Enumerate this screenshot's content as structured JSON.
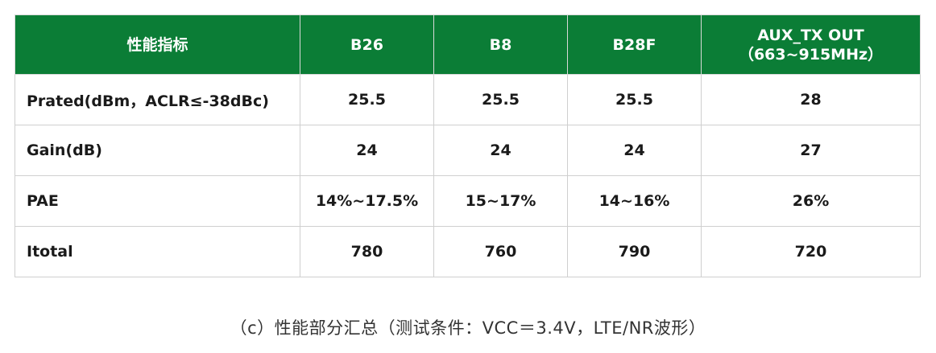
{
  "table": {
    "headers": [
      {
        "lines": [
          "性能指标"
        ]
      },
      {
        "lines": [
          "B26"
        ]
      },
      {
        "lines": [
          "B8"
        ]
      },
      {
        "lines": [
          "B28F"
        ]
      },
      {
        "lines": [
          "AUX_TX OUT",
          "（663~915MHz）"
        ]
      }
    ],
    "rows": [
      {
        "label": "Prated(dBm，ACLR≤-38dBc)",
        "values": [
          "25.5",
          "25.5",
          "25.5",
          "28"
        ]
      },
      {
        "label": "Gain(dB)",
        "values": [
          "24",
          "24",
          "24",
          "27"
        ]
      },
      {
        "label": "PAE",
        "values": [
          "14%~17.5%",
          "15~17%",
          "14~16%",
          "26%"
        ]
      },
      {
        "label": "Itotal",
        "values": [
          "780",
          "760",
          "790",
          "720"
        ]
      }
    ]
  },
  "caption": "（c）性能部分汇总（测试条件：VCC＝3.4V，LTE/NR波形）",
  "colors": {
    "header_bg": "#0b7d36",
    "header_text": "#ffffff",
    "border": "#cfcfcf"
  }
}
